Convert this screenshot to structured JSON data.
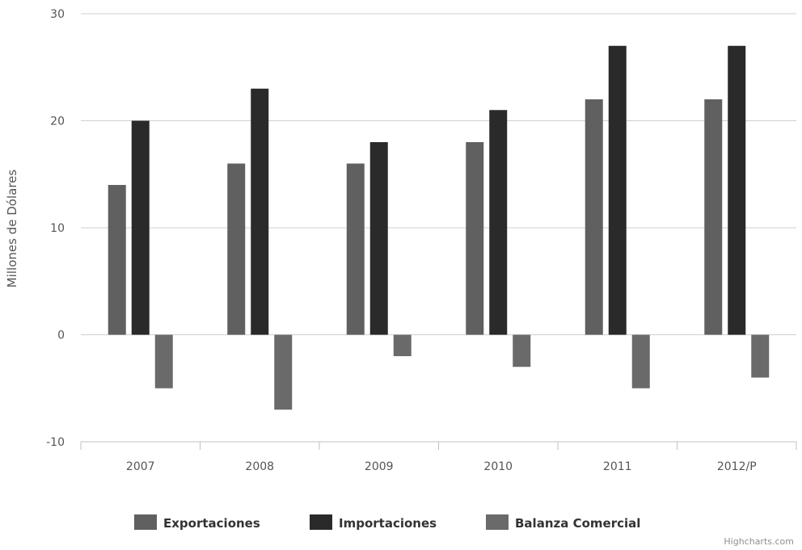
{
  "chart_data": {
    "type": "bar",
    "title": "",
    "xlabel": "",
    "ylabel": "Millones de Dólares",
    "ylim": [
      -10,
      30
    ],
    "yticks": [
      -10,
      0,
      10,
      20,
      30
    ],
    "categories": [
      "2007",
      "2008",
      "2009",
      "2010",
      "2011",
      "2012/P"
    ],
    "series": [
      {
        "name": "Exportaciones",
        "color": "#606060",
        "values": [
          14,
          16,
          16,
          18,
          22,
          22
        ]
      },
      {
        "name": "Importaciones",
        "color": "#2a2a2a",
        "values": [
          20,
          23,
          18,
          21,
          27,
          27
        ]
      },
      {
        "name": "Balanza Comercial",
        "color": "#6a6a6a",
        "values": [
          -5,
          -7,
          -2,
          -3,
          -5,
          -4
        ]
      }
    ],
    "legend_position": "bottom-center",
    "grid": true,
    "credit": "Highcharts.com"
  }
}
